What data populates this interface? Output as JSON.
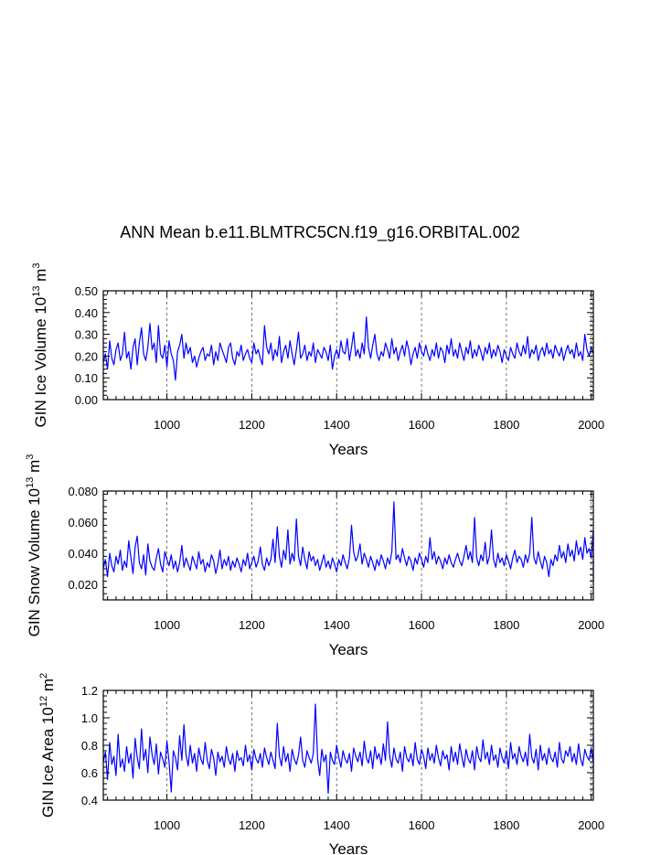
{
  "title": "ANN Mean b.e11.BLMTRC5CN.f19_g16.ORBITAL.002",
  "chart_data": [
    {
      "type": "line",
      "title": "",
      "xlabel": "Years",
      "ylabel": "GIN Ice Volume 10",
      "ylabel_sup1": "13",
      "ylabel_mid": " m",
      "ylabel_sup2": "3",
      "xlim": [
        850,
        2005
      ],
      "ylim": [
        0.0,
        0.5
      ],
      "xticks": [
        1000,
        1200,
        1400,
        1600,
        1800,
        2000
      ],
      "yticks": [
        0.0,
        0.1,
        0.2,
        0.3,
        0.4,
        0.5
      ],
      "ytick_labels": [
        "0.00",
        "0.10",
        "0.20",
        "0.30",
        "0.40",
        "0.50"
      ],
      "grid": "vertical dashed at x ticks",
      "color": "#0000ff",
      "x_start": 850,
      "x_step": 5,
      "values": [
        0.17,
        0.21,
        0.14,
        0.27,
        0.19,
        0.16,
        0.23,
        0.26,
        0.18,
        0.21,
        0.31,
        0.19,
        0.22,
        0.14,
        0.24,
        0.28,
        0.16,
        0.26,
        0.33,
        0.21,
        0.18,
        0.24,
        0.35,
        0.23,
        0.26,
        0.17,
        0.34,
        0.21,
        0.19,
        0.25,
        0.15,
        0.27,
        0.21,
        0.18,
        0.09,
        0.22,
        0.25,
        0.3,
        0.19,
        0.26,
        0.21,
        0.24,
        0.17,
        0.2,
        0.15,
        0.19,
        0.22,
        0.24,
        0.18,
        0.21,
        0.2,
        0.25,
        0.16,
        0.22,
        0.18,
        0.26,
        0.23,
        0.2,
        0.17,
        0.24,
        0.26,
        0.19,
        0.16,
        0.22,
        0.2,
        0.25,
        0.18,
        0.21,
        0.23,
        0.19,
        0.17,
        0.26,
        0.21,
        0.23,
        0.19,
        0.16,
        0.34,
        0.24,
        0.21,
        0.26,
        0.18,
        0.23,
        0.2,
        0.29,
        0.17,
        0.22,
        0.25,
        0.19,
        0.27,
        0.21,
        0.16,
        0.23,
        0.31,
        0.19,
        0.21,
        0.25,
        0.18,
        0.22,
        0.2,
        0.26,
        0.17,
        0.23,
        0.21,
        0.19,
        0.24,
        0.22,
        0.18,
        0.25,
        0.14,
        0.2,
        0.23,
        0.19,
        0.27,
        0.22,
        0.21,
        0.28,
        0.18,
        0.24,
        0.31,
        0.2,
        0.23,
        0.19,
        0.26,
        0.21,
        0.38,
        0.24,
        0.19,
        0.25,
        0.3,
        0.21,
        0.18,
        0.22,
        0.2,
        0.26,
        0.23,
        0.19,
        0.28,
        0.21,
        0.24,
        0.18,
        0.22,
        0.25,
        0.2,
        0.27,
        0.23,
        0.16,
        0.21,
        0.24,
        0.19,
        0.26,
        0.22,
        0.2,
        0.25,
        0.21,
        0.18,
        0.23,
        0.2,
        0.26,
        0.19,
        0.24,
        0.22,
        0.17,
        0.25,
        0.21,
        0.28,
        0.2,
        0.23,
        0.19,
        0.26,
        0.22,
        0.18,
        0.24,
        0.21,
        0.27,
        0.19,
        0.23,
        0.2,
        0.25,
        0.22,
        0.18,
        0.24,
        0.21,
        0.26,
        0.19,
        0.23,
        0.2,
        0.25,
        0.22,
        0.17,
        0.23,
        0.2,
        0.18,
        0.24,
        0.21,
        0.19,
        0.26,
        0.22,
        0.2,
        0.25,
        0.21,
        0.29,
        0.19,
        0.23,
        0.21,
        0.25,
        0.18,
        0.22,
        0.24,
        0.2,
        0.26,
        0.21,
        0.23,
        0.19,
        0.25,
        0.22,
        0.2,
        0.24,
        0.18,
        0.22,
        0.25,
        0.21,
        0.23,
        0.19,
        0.26,
        0.2,
        0.22,
        0.18,
        0.3,
        0.23,
        0.2,
        0.24,
        0.21
      ]
    },
    {
      "type": "line",
      "title": "",
      "xlabel": "Years",
      "ylabel": "GIN Snow Volume 10",
      "ylabel_sup1": "13",
      "ylabel_mid": " m",
      "ylabel_sup2": "3",
      "xlim": [
        850,
        2005
      ],
      "ylim": [
        0.01,
        0.08
      ],
      "xticks": [
        1000,
        1200,
        1400,
        1600,
        1800,
        2000
      ],
      "yticks": [
        0.02,
        0.04,
        0.06,
        0.08
      ],
      "ytick_labels": [
        "0.020",
        "0.040",
        "0.060",
        "0.080"
      ],
      "grid": "vertical dashed at x ticks",
      "color": "#0000ff",
      "x_start": 850,
      "x_step": 5,
      "values": [
        0.03,
        0.036,
        0.025,
        0.04,
        0.032,
        0.028,
        0.038,
        0.033,
        0.042,
        0.029,
        0.035,
        0.031,
        0.048,
        0.037,
        0.027,
        0.044,
        0.051,
        0.034,
        0.03,
        0.039,
        0.026,
        0.046,
        0.035,
        0.031,
        0.029,
        0.037,
        0.043,
        0.033,
        0.028,
        0.041,
        0.036,
        0.032,
        0.039,
        0.03,
        0.035,
        0.028,
        0.034,
        0.045,
        0.031,
        0.037,
        0.033,
        0.029,
        0.038,
        0.034,
        0.03,
        0.041,
        0.033,
        0.036,
        0.028,
        0.034,
        0.031,
        0.039,
        0.035,
        0.027,
        0.033,
        0.042,
        0.03,
        0.036,
        0.032,
        0.038,
        0.029,
        0.035,
        0.031,
        0.037,
        0.033,
        0.028,
        0.036,
        0.032,
        0.04,
        0.03,
        0.034,
        0.038,
        0.031,
        0.035,
        0.044,
        0.033,
        0.029,
        0.037,
        0.032,
        0.036,
        0.049,
        0.034,
        0.057,
        0.038,
        0.031,
        0.042,
        0.036,
        0.055,
        0.033,
        0.04,
        0.035,
        0.062,
        0.038,
        0.032,
        0.044,
        0.036,
        0.03,
        0.041,
        0.035,
        0.038,
        0.032,
        0.036,
        0.029,
        0.034,
        0.039,
        0.031,
        0.035,
        0.03,
        0.037,
        0.033,
        0.028,
        0.036,
        0.032,
        0.039,
        0.034,
        0.03,
        0.037,
        0.058,
        0.041,
        0.035,
        0.038,
        0.046,
        0.033,
        0.04,
        0.036,
        0.031,
        0.038,
        0.034,
        0.029,
        0.036,
        0.032,
        0.039,
        0.035,
        0.03,
        0.037,
        0.033,
        0.041,
        0.073,
        0.036,
        0.039,
        0.034,
        0.043,
        0.037,
        0.032,
        0.038,
        0.035,
        0.029,
        0.037,
        0.033,
        0.04,
        0.036,
        0.031,
        0.038,
        0.034,
        0.05,
        0.036,
        0.041,
        0.033,
        0.038,
        0.035,
        0.03,
        0.037,
        0.033,
        0.039,
        0.034,
        0.031,
        0.036,
        0.04,
        0.035,
        0.032,
        0.038,
        0.045,
        0.036,
        0.041,
        0.034,
        0.063,
        0.037,
        0.032,
        0.039,
        0.035,
        0.047,
        0.033,
        0.038,
        0.055,
        0.036,
        0.031,
        0.04,
        0.034,
        0.037,
        0.032,
        0.039,
        0.035,
        0.03,
        0.037,
        0.042,
        0.034,
        0.038,
        0.036,
        0.031,
        0.039,
        0.034,
        0.04,
        0.063,
        0.037,
        0.033,
        0.041,
        0.035,
        0.03,
        0.038,
        0.034,
        0.025,
        0.036,
        0.032,
        0.039,
        0.035,
        0.045,
        0.037,
        0.041,
        0.034,
        0.046,
        0.038,
        0.042,
        0.035,
        0.048,
        0.039,
        0.044,
        0.036,
        0.05,
        0.04,
        0.043,
        0.037,
        0.055,
        0.041,
        0.03,
        0.038,
        0.022
      ]
    },
    {
      "type": "line",
      "title": "",
      "xlabel": "Years",
      "ylabel": "GIN Ice Area 10",
      "ylabel_sup1": "12",
      "ylabel_mid": " m",
      "ylabel_sup2": "2",
      "xlim": [
        850,
        2005
      ],
      "ylim": [
        0.4,
        1.2
      ],
      "xticks": [
        1000,
        1200,
        1400,
        1600,
        1800,
        2000
      ],
      "yticks": [
        0.4,
        0.6,
        0.8,
        1.0,
        1.2
      ],
      "ytick_labels": [
        "0.4",
        "0.6",
        "0.8",
        "1.0",
        "1.2"
      ],
      "grid": "vertical dashed at x ticks",
      "color": "#0000ff",
      "x_start": 850,
      "x_step": 5,
      "values": [
        0.68,
        0.75,
        0.55,
        0.82,
        0.66,
        0.72,
        0.58,
        0.88,
        0.64,
        0.7,
        0.61,
        0.79,
        0.67,
        0.74,
        0.56,
        0.85,
        0.71,
        0.63,
        0.92,
        0.69,
        0.77,
        0.6,
        0.86,
        0.73,
        0.66,
        0.81,
        0.59,
        0.75,
        0.7,
        0.64,
        0.83,
        0.68,
        0.46,
        0.76,
        0.71,
        0.62,
        0.87,
        0.69,
        0.95,
        0.73,
        0.65,
        0.8,
        0.67,
        0.74,
        0.61,
        0.78,
        0.7,
        0.66,
        0.82,
        0.69,
        0.63,
        0.77,
        0.71,
        0.58,
        0.75,
        0.68,
        0.72,
        0.64,
        0.79,
        0.7,
        0.66,
        0.74,
        0.61,
        0.76,
        0.69,
        0.71,
        0.65,
        0.8,
        0.68,
        0.73,
        0.62,
        0.77,
        0.7,
        0.67,
        0.74,
        0.64,
        0.78,
        0.71,
        0.66,
        0.75,
        0.69,
        0.63,
        0.96,
        0.72,
        0.65,
        0.79,
        0.68,
        0.74,
        0.61,
        0.77,
        0.7,
        0.66,
        0.73,
        0.86,
        0.69,
        0.64,
        0.76,
        0.71,
        0.67,
        0.74,
        1.1,
        0.7,
        0.58,
        0.77,
        0.68,
        0.73,
        0.45,
        0.75,
        0.69,
        0.66,
        0.8,
        0.71,
        0.64,
        0.76,
        0.7,
        0.67,
        0.74,
        0.61,
        0.78,
        0.72,
        0.68,
        0.75,
        0.65,
        0.83,
        0.71,
        0.67,
        0.76,
        0.63,
        0.79,
        0.7,
        0.74,
        0.66,
        0.81,
        0.69,
        0.97,
        0.72,
        0.64,
        0.78,
        0.7,
        0.67,
        0.75,
        0.61,
        0.79,
        0.71,
        0.68,
        0.74,
        0.65,
        0.82,
        0.7,
        0.66,
        0.77,
        0.72,
        0.63,
        0.78,
        0.69,
        0.74,
        0.67,
        0.8,
        0.71,
        0.65,
        0.76,
        0.7,
        0.73,
        0.62,
        0.79,
        0.68,
        0.75,
        0.66,
        0.81,
        0.72,
        0.64,
        0.77,
        0.7,
        0.67,
        0.76,
        0.62,
        0.79,
        0.71,
        0.68,
        0.84,
        0.7,
        0.75,
        0.66,
        0.8,
        0.69,
        0.73,
        0.64,
        0.78,
        0.71,
        0.67,
        0.76,
        0.63,
        0.82,
        0.7,
        0.74,
        0.66,
        0.79,
        0.72,
        0.68,
        0.75,
        0.65,
        0.88,
        0.71,
        0.67,
        0.77,
        0.62,
        0.8,
        0.69,
        0.74,
        0.66,
        0.78,
        0.71,
        0.68,
        0.75,
        0.64,
        0.82,
        0.7,
        0.67,
        0.76,
        0.72,
        0.79,
        0.68,
        0.74,
        0.66,
        0.81,
        0.7,
        0.65,
        0.77,
        0.72,
        0.69,
        0.78,
        0.67,
        0.75,
        0.6,
        0.79,
        0.71,
        0.88,
        0.64,
        0.76,
        0.7
      ]
    }
  ]
}
